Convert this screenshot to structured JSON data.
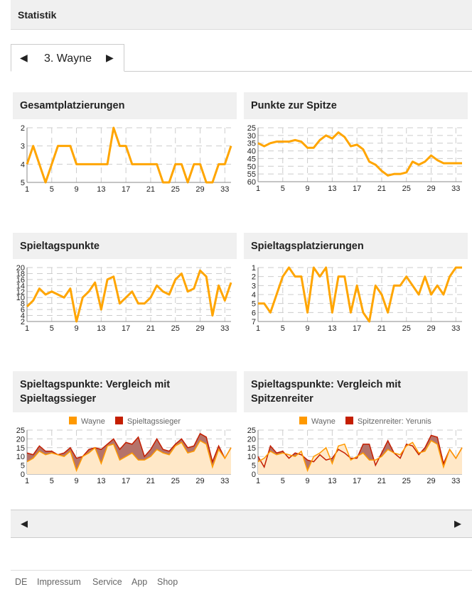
{
  "header": {
    "title": "Statistik"
  },
  "tab": {
    "prev_icon": "◀",
    "label": "3. Wayne",
    "next_icon": "▶"
  },
  "chart_data": [
    {
      "id": "c1",
      "type": "line",
      "title": "Gesamtplatzierungen",
      "reversed": true,
      "ylim": [
        2,
        5
      ],
      "yticks": [
        2,
        3,
        4,
        5
      ],
      "xticks": [
        1,
        5,
        9,
        13,
        17,
        21,
        25,
        29,
        33
      ],
      "series": [
        {
          "name": "Wayne",
          "color": "#ffa500",
          "values": [
            4,
            3,
            4,
            5,
            4,
            3,
            3,
            3,
            4,
            4,
            4,
            4,
            4,
            4,
            2,
            3,
            3,
            4,
            4,
            4,
            4,
            4,
            5,
            5,
            4,
            4,
            5,
            4,
            4,
            5,
            5,
            4,
            4,
            3
          ]
        }
      ]
    },
    {
      "id": "c2",
      "type": "line",
      "title": "Punkte zur Spitze",
      "reversed": true,
      "ylim": [
        25,
        60
      ],
      "yticks": [
        25,
        30,
        35,
        40,
        45,
        50,
        55,
        60
      ],
      "xticks": [
        1,
        5,
        9,
        13,
        17,
        21,
        25,
        29,
        33
      ],
      "series": [
        {
          "name": "Wayne",
          "color": "#ffa500",
          "values": [
            35,
            37,
            35,
            34,
            34,
            34,
            33,
            34,
            38,
            38,
            33,
            30,
            32,
            28,
            31,
            37,
            36,
            39,
            47,
            49,
            53,
            56,
            55,
            55,
            54,
            47,
            49,
            47,
            43,
            46,
            48,
            48,
            48,
            48
          ]
        }
      ]
    },
    {
      "id": "c3",
      "type": "line",
      "title": "Spieltagspunkte",
      "reversed": false,
      "ylim": [
        2,
        20
      ],
      "yticks": [
        2,
        4,
        6,
        8,
        10,
        12,
        14,
        16,
        18,
        20
      ],
      "xticks": [
        1,
        5,
        9,
        13,
        17,
        21,
        25,
        29,
        33
      ],
      "series": [
        {
          "name": "Wayne",
          "color": "#ffa500",
          "values": [
            7,
            9,
            13,
            11,
            12,
            11,
            10,
            13,
            2,
            10,
            12,
            15,
            6,
            16,
            17,
            8,
            10,
            12,
            8,
            8,
            10,
            14,
            12,
            11,
            16,
            18,
            12,
            13,
            19,
            17,
            4,
            14,
            9,
            15
          ]
        }
      ]
    },
    {
      "id": "c4",
      "type": "line",
      "title": "Spieltagsplatzierungen",
      "reversed": true,
      "ylim": [
        1,
        7
      ],
      "yticks": [
        1,
        2,
        3,
        4,
        5,
        6,
        7
      ],
      "xticks": [
        1,
        5,
        9,
        13,
        17,
        21,
        25,
        29,
        33
      ],
      "series": [
        {
          "name": "Wayne",
          "color": "#ffa500",
          "values": [
            5,
            5,
            6,
            4,
            2,
            1,
            2,
            2,
            6,
            1,
            2,
            1,
            6,
            2,
            2,
            6,
            3,
            6,
            7,
            3,
            4,
            6,
            3,
            3,
            2,
            3,
            4,
            2,
            4,
            3,
            4,
            2,
            1,
            1
          ]
        }
      ]
    },
    {
      "id": "c5",
      "type": "area",
      "title": "Spieltagspunkte: Vergleich mit Spieltagssieger",
      "reversed": false,
      "ylim": [
        0,
        25
      ],
      "yticks": [
        0,
        5,
        10,
        15,
        20,
        25
      ],
      "xticks": [
        1,
        5,
        9,
        13,
        17,
        21,
        25,
        29,
        33
      ],
      "legend": "top",
      "series": [
        {
          "name": "Wayne",
          "color": "#ff9900",
          "values": [
            7,
            9,
            13,
            11,
            12,
            11,
            10,
            13,
            2,
            10,
            12,
            15,
            6,
            16,
            17,
            8,
            10,
            12,
            8,
            8,
            10,
            14,
            12,
            11,
            16,
            18,
            12,
            13,
            19,
            17,
            4,
            14,
            9,
            15
          ]
        },
        {
          "name": "Spieltagssieger",
          "color": "#c41e00",
          "values": [
            12,
            11,
            16,
            13,
            13,
            11,
            12,
            15,
            9,
            10,
            14,
            15,
            14,
            17,
            20,
            14,
            18,
            17,
            21,
            10,
            14,
            20,
            14,
            13,
            17,
            20,
            15,
            16,
            23,
            21,
            7,
            16,
            9,
            15
          ]
        }
      ]
    },
    {
      "id": "c6",
      "type": "area",
      "title": "Spieltagspunkte: Vergleich mit Spitzenreiter",
      "reversed": false,
      "ylim": [
        0,
        25
      ],
      "yticks": [
        0,
        5,
        10,
        15,
        20,
        25
      ],
      "xticks": [
        1,
        5,
        9,
        13,
        17,
        21,
        25,
        29,
        33
      ],
      "legend": "top",
      "series": [
        {
          "name": "Wayne",
          "color": "#ff9900",
          "values": [
            7,
            9,
            13,
            11,
            12,
            11,
            10,
            13,
            2,
            10,
            12,
            15,
            6,
            16,
            17,
            8,
            10,
            12,
            8,
            8,
            10,
            14,
            12,
            11,
            16,
            18,
            12,
            13,
            19,
            17,
            4,
            14,
            9,
            15
          ]
        },
        {
          "name": "Spitzenreiter: Yerunis",
          "color": "#c41e00",
          "values": [
            10,
            4,
            16,
            12,
            13,
            9,
            12,
            11,
            8,
            7,
            11,
            8,
            9,
            14,
            12,
            9,
            9,
            17,
            17,
            5,
            12,
            19,
            12,
            9,
            17,
            16,
            11,
            15,
            22,
            21,
            6,
            14,
            9,
            15
          ]
        }
      ]
    }
  ],
  "pager": {
    "prev_icon": "◀",
    "next_icon": "▶"
  },
  "footer": {
    "links": [
      "DE",
      "Impressum",
      "Service",
      "App",
      "Shop"
    ]
  }
}
